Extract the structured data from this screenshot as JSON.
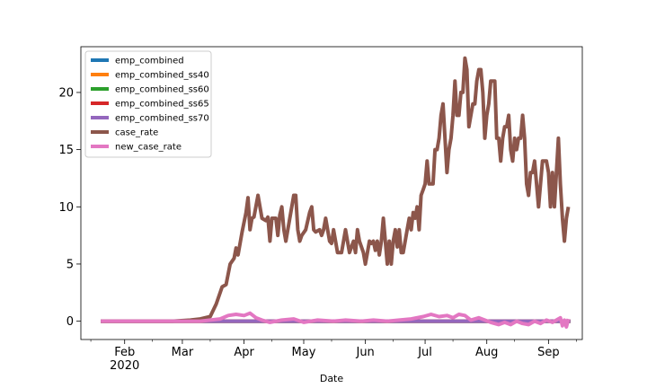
{
  "chart_data": {
    "type": "line",
    "title": "",
    "xlabel": "Date",
    "ylabel": "",
    "ylim": [
      -1.6,
      24.0
    ],
    "xlim": [
      "2020-01-10",
      "2020-09-18"
    ],
    "x_tick_labels": [
      {
        "date": "2020-02-01",
        "label": "Feb",
        "sublabel": "2020"
      },
      {
        "date": "2020-03-01",
        "label": "Mar",
        "sublabel": ""
      },
      {
        "date": "2020-04-01",
        "label": "Apr",
        "sublabel": ""
      },
      {
        "date": "2020-05-01",
        "label": "May",
        "sublabel": ""
      },
      {
        "date": "2020-06-01",
        "label": "Jun",
        "sublabel": ""
      },
      {
        "date": "2020-07-01",
        "label": "Jul",
        "sublabel": ""
      },
      {
        "date": "2020-08-01",
        "label": "Aug",
        "sublabel": ""
      },
      {
        "date": "2020-09-01",
        "label": "Sep",
        "sublabel": ""
      }
    ],
    "y_ticks": [
      0,
      5,
      10,
      15,
      20
    ],
    "legend_position": "top-left",
    "grid": false,
    "series": [
      {
        "name": "emp_combined",
        "color": "#1f77b4",
        "points": [
          [
            "2020-01-20",
            0
          ],
          [
            "2020-09-12",
            0
          ]
        ]
      },
      {
        "name": "emp_combined_ss40",
        "color": "#ff7f0e",
        "points": [
          [
            "2020-01-20",
            0
          ],
          [
            "2020-09-12",
            0
          ]
        ]
      },
      {
        "name": "emp_combined_ss60",
        "color": "#2ca02c",
        "points": [
          [
            "2020-01-20",
            0
          ],
          [
            "2020-09-12",
            0
          ]
        ]
      },
      {
        "name": "emp_combined_ss65",
        "color": "#d62728",
        "points": [
          [
            "2020-01-20",
            0
          ],
          [
            "2020-09-12",
            0
          ]
        ]
      },
      {
        "name": "emp_combined_ss70",
        "color": "#9467bd",
        "points": [
          [
            "2020-01-20",
            0
          ],
          [
            "2020-09-12",
            0
          ]
        ]
      },
      {
        "name": "case_rate",
        "color": "#8c564b",
        "points": [
          [
            "2020-01-20",
            0
          ],
          [
            "2020-02-25",
            0
          ],
          [
            "2020-03-05",
            0.1
          ],
          [
            "2020-03-10",
            0.2
          ],
          [
            "2020-03-15",
            0.4
          ],
          [
            "2020-03-18",
            1.5
          ],
          [
            "2020-03-21",
            3
          ],
          [
            "2020-03-23",
            3.2
          ],
          [
            "2020-03-25",
            5
          ],
          [
            "2020-03-27",
            5.5
          ],
          [
            "2020-03-28",
            6.4
          ],
          [
            "2020-03-29",
            5.8
          ],
          [
            "2020-03-31",
            7.8
          ],
          [
            "2020-04-02",
            9.5
          ],
          [
            "2020-04-03",
            10.8
          ],
          [
            "2020-04-04",
            8
          ],
          [
            "2020-04-05",
            9
          ],
          [
            "2020-04-06",
            9.1
          ],
          [
            "2020-04-08",
            11
          ],
          [
            "2020-04-10",
            9
          ],
          [
            "2020-04-12",
            8.8
          ],
          [
            "2020-04-13",
            9.1
          ],
          [
            "2020-04-14",
            7
          ],
          [
            "2020-04-15",
            9
          ],
          [
            "2020-04-17",
            9
          ],
          [
            "2020-04-18",
            7.5
          ],
          [
            "2020-04-19",
            9.3
          ],
          [
            "2020-04-20",
            10
          ],
          [
            "2020-04-21",
            8
          ],
          [
            "2020-04-22",
            7
          ],
          [
            "2020-04-24",
            9
          ],
          [
            "2020-04-26",
            11
          ],
          [
            "2020-04-27",
            11
          ],
          [
            "2020-04-28",
            8
          ],
          [
            "2020-04-29",
            7
          ],
          [
            "2020-04-30",
            7.5
          ],
          [
            "2020-05-02",
            8
          ],
          [
            "2020-05-04",
            9.5
          ],
          [
            "2020-05-05",
            10
          ],
          [
            "2020-05-06",
            8
          ],
          [
            "2020-05-07",
            7.8
          ],
          [
            "2020-05-09",
            8
          ],
          [
            "2020-05-10",
            7.5
          ],
          [
            "2020-05-11",
            8
          ],
          [
            "2020-05-12",
            9
          ],
          [
            "2020-05-13",
            8
          ],
          [
            "2020-05-14",
            7
          ],
          [
            "2020-05-15",
            6.8
          ],
          [
            "2020-05-16",
            8
          ],
          [
            "2020-05-17",
            7
          ],
          [
            "2020-05-18",
            6
          ],
          [
            "2020-05-20",
            6
          ],
          [
            "2020-05-21",
            7
          ],
          [
            "2020-05-22",
            8
          ],
          [
            "2020-05-23",
            7
          ],
          [
            "2020-05-24",
            6
          ],
          [
            "2020-05-26",
            7
          ],
          [
            "2020-05-27",
            6
          ],
          [
            "2020-05-28",
            8
          ],
          [
            "2020-05-29",
            7
          ],
          [
            "2020-05-31",
            6
          ],
          [
            "2020-06-01",
            5
          ],
          [
            "2020-06-02",
            6
          ],
          [
            "2020-06-03",
            7
          ],
          [
            "2020-06-04",
            6.8
          ],
          [
            "2020-06-05",
            7
          ],
          [
            "2020-06-06",
            6.2
          ],
          [
            "2020-06-07",
            7
          ],
          [
            "2020-06-08",
            5.8
          ],
          [
            "2020-06-09",
            7
          ],
          [
            "2020-06-10",
            9
          ],
          [
            "2020-06-11",
            7
          ],
          [
            "2020-06-12",
            5
          ],
          [
            "2020-06-13",
            7
          ],
          [
            "2020-06-14",
            5
          ],
          [
            "2020-06-15",
            7
          ],
          [
            "2020-06-16",
            8
          ],
          [
            "2020-06-17",
            6.5
          ],
          [
            "2020-06-18",
            8
          ],
          [
            "2020-06-19",
            6
          ],
          [
            "2020-06-20",
            6
          ],
          [
            "2020-06-21",
            7
          ],
          [
            "2020-06-22",
            8
          ],
          [
            "2020-06-23",
            9
          ],
          [
            "2020-06-24",
            8
          ],
          [
            "2020-06-25",
            9.5
          ],
          [
            "2020-06-26",
            9
          ],
          [
            "2020-06-27",
            10
          ],
          [
            "2020-06-28",
            8
          ],
          [
            "2020-06-29",
            11
          ],
          [
            "2020-06-30",
            11.5
          ],
          [
            "2020-07-01",
            12
          ],
          [
            "2020-07-02",
            14
          ],
          [
            "2020-07-03",
            12
          ],
          [
            "2020-07-05",
            12
          ],
          [
            "2020-07-06",
            15
          ],
          [
            "2020-07-07",
            15
          ],
          [
            "2020-07-08",
            16
          ],
          [
            "2020-07-09",
            18
          ],
          [
            "2020-07-10",
            19
          ],
          [
            "2020-07-11",
            16
          ],
          [
            "2020-07-12",
            13
          ],
          [
            "2020-07-13",
            15
          ],
          [
            "2020-07-14",
            16
          ],
          [
            "2020-07-15",
            18
          ],
          [
            "2020-07-16",
            21
          ],
          [
            "2020-07-17",
            18
          ],
          [
            "2020-07-18",
            18
          ],
          [
            "2020-07-19",
            20
          ],
          [
            "2020-07-20",
            20
          ],
          [
            "2020-07-21",
            23
          ],
          [
            "2020-07-22",
            22
          ],
          [
            "2020-07-23",
            17
          ],
          [
            "2020-07-24",
            18
          ],
          [
            "2020-07-25",
            19
          ],
          [
            "2020-07-26",
            19
          ],
          [
            "2020-07-27",
            21
          ],
          [
            "2020-07-28",
            22
          ],
          [
            "2020-07-29",
            22
          ],
          [
            "2020-07-30",
            20
          ],
          [
            "2020-07-31",
            16
          ],
          [
            "2020-08-01",
            18
          ],
          [
            "2020-08-02",
            19
          ],
          [
            "2020-08-03",
            21
          ],
          [
            "2020-08-05",
            21
          ],
          [
            "2020-08-06",
            16
          ],
          [
            "2020-08-07",
            16
          ],
          [
            "2020-08-08",
            14
          ],
          [
            "2020-08-09",
            16
          ],
          [
            "2020-08-10",
            17
          ],
          [
            "2020-08-11",
            17
          ],
          [
            "2020-08-12",
            18
          ],
          [
            "2020-08-13",
            15
          ],
          [
            "2020-08-14",
            14
          ],
          [
            "2020-08-15",
            16
          ],
          [
            "2020-08-16",
            15
          ],
          [
            "2020-08-17",
            16
          ],
          [
            "2020-08-18",
            16
          ],
          [
            "2020-08-19",
            18
          ],
          [
            "2020-08-20",
            16
          ],
          [
            "2020-08-21",
            12
          ],
          [
            "2020-08-22",
            11
          ],
          [
            "2020-08-23",
            13
          ],
          [
            "2020-08-24",
            13
          ],
          [
            "2020-08-25",
            14
          ],
          [
            "2020-08-26",
            12
          ],
          [
            "2020-08-27",
            10
          ],
          [
            "2020-08-28",
            12
          ],
          [
            "2020-08-29",
            14
          ],
          [
            "2020-08-31",
            14
          ],
          [
            "2020-09-01",
            13
          ],
          [
            "2020-09-02",
            10
          ],
          [
            "2020-09-03",
            13
          ],
          [
            "2020-09-04",
            10
          ],
          [
            "2020-09-05",
            13
          ],
          [
            "2020-09-06",
            16
          ],
          [
            "2020-09-07",
            12
          ],
          [
            "2020-09-08",
            9
          ],
          [
            "2020-09-09",
            7
          ],
          [
            "2020-09-10",
            9
          ],
          [
            "2020-09-11",
            10
          ]
        ]
      },
      {
        "name": "new_case_rate",
        "color": "#e377c2",
        "points": [
          [
            "2020-01-20",
            0
          ],
          [
            "2020-03-10",
            0
          ],
          [
            "2020-03-20",
            0.2
          ],
          [
            "2020-03-24",
            0.5
          ],
          [
            "2020-03-28",
            0.6
          ],
          [
            "2020-04-01",
            0.5
          ],
          [
            "2020-04-04",
            0.7
          ],
          [
            "2020-04-07",
            0.3
          ],
          [
            "2020-04-10",
            0.1
          ],
          [
            "2020-04-14",
            -0.1
          ],
          [
            "2020-04-20",
            0.1
          ],
          [
            "2020-04-26",
            0.2
          ],
          [
            "2020-05-01",
            -0.1
          ],
          [
            "2020-05-08",
            0.1
          ],
          [
            "2020-05-16",
            0
          ],
          [
            "2020-05-22",
            0.1
          ],
          [
            "2020-05-30",
            0
          ],
          [
            "2020-06-05",
            0.1
          ],
          [
            "2020-06-12",
            0
          ],
          [
            "2020-06-18",
            0.1
          ],
          [
            "2020-06-24",
            0.2
          ],
          [
            "2020-06-30",
            0.4
          ],
          [
            "2020-07-04",
            0.6
          ],
          [
            "2020-07-08",
            0.4
          ],
          [
            "2020-07-12",
            0.5
          ],
          [
            "2020-07-15",
            0.3
          ],
          [
            "2020-07-18",
            0.6
          ],
          [
            "2020-07-21",
            0.5
          ],
          [
            "2020-07-24",
            0.1
          ],
          [
            "2020-07-28",
            0.3
          ],
          [
            "2020-07-31",
            0.1
          ],
          [
            "2020-08-03",
            -0.1
          ],
          [
            "2020-08-07",
            -0.3
          ],
          [
            "2020-08-10",
            -0.1
          ],
          [
            "2020-08-13",
            -0.3
          ],
          [
            "2020-08-16",
            0
          ],
          [
            "2020-08-19",
            -0.2
          ],
          [
            "2020-08-22",
            -0.3
          ],
          [
            "2020-08-25",
            0
          ],
          [
            "2020-08-28",
            -0.2
          ],
          [
            "2020-08-31",
            0.1
          ],
          [
            "2020-09-03",
            -0.1
          ],
          [
            "2020-09-05",
            0.1
          ],
          [
            "2020-09-07",
            0.3
          ],
          [
            "2020-09-08",
            -0.4
          ],
          [
            "2020-09-09",
            0.1
          ],
          [
            "2020-09-10",
            -0.5
          ],
          [
            "2020-09-11",
            0.2
          ]
        ]
      }
    ]
  }
}
